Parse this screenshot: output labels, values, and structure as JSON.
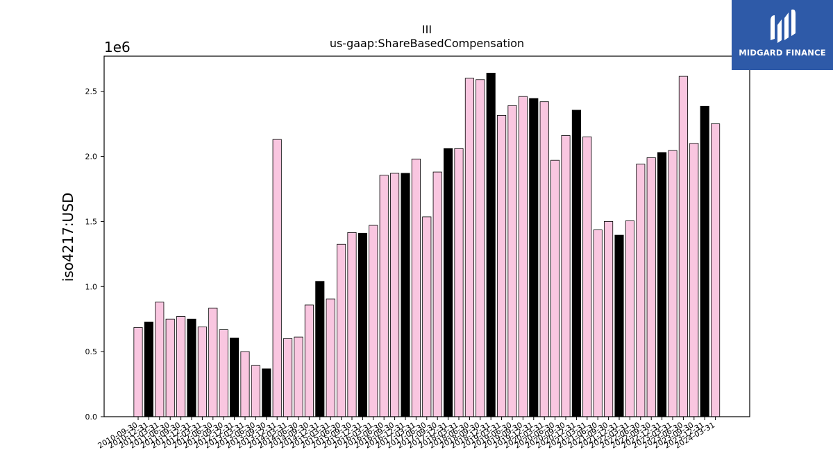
{
  "brand": {
    "name": "MIDGARD FINANCE",
    "bg_color": "#2e5aa8"
  },
  "chart_data": {
    "type": "bar",
    "title": "III",
    "subtitle": "us-gaap:ShareBasedCompensation",
    "ylabel": "iso4217:USD",
    "xlabel": "",
    "y_offset_label": "1e6",
    "ylim": [
      0,
      2770000
    ],
    "yticks": [
      0.0,
      0.5,
      1.0,
      1.5,
      2.0,
      2.5
    ],
    "yticks_display": [
      "0.0",
      "0.5",
      "1.0",
      "1.5",
      "2.0",
      "2.5"
    ],
    "colors": {
      "quarter": "#f9c6e0",
      "fiscal_year_end": "#000000",
      "edge": "#000000"
    },
    "grid": false,
    "categories": [
      "2010-09-30",
      "2010-12-31",
      "2011-03-31",
      "2011-06-30",
      "2011-09-30",
      "2011-12-31",
      "2012-03-31",
      "2012-06-30",
      "2012-09-30",
      "2012-12-31",
      "2013-03-31",
      "2013-06-30",
      "2013-09-30",
      "2013-12-31",
      "2014-03-31",
      "2014-06-30",
      "2014-09-30",
      "2014-12-31",
      "2015-03-31",
      "2015-06-30",
      "2015-09-30",
      "2015-12-31",
      "2016-03-31",
      "2016-06-30",
      "2016-09-30",
      "2016-12-31",
      "2017-03-31",
      "2017-06-30",
      "2017-09-30",
      "2017-12-31",
      "2018-03-31",
      "2018-06-30",
      "2018-09-30",
      "2018-12-31",
      "2019-03-31",
      "2019-06-30",
      "2019-09-30",
      "2019-12-31",
      "2020-03-31",
      "2020-06-30",
      "2020-09-30",
      "2020-12-31",
      "2021-03-31",
      "2021-06-30",
      "2021-09-30",
      "2021-12-31",
      "2022-03-31",
      "2022-06-30",
      "2022-09-30",
      "2022-12-31",
      "2023-03-31",
      "2023-06-30",
      "2023-09-30",
      "2023-12-31",
      "2024-03-31"
    ],
    "values": [
      685000,
      728000,
      880000,
      750000,
      770000,
      750000,
      690000,
      835000,
      668000,
      605000,
      500000,
      393000,
      368000,
      2130000,
      600000,
      612000,
      858000,
      1040000,
      905000,
      1325000,
      1415000,
      1410000,
      1470000,
      1855000,
      1870000,
      1870000,
      1980000,
      1535000,
      1880000,
      2060000,
      2060000,
      2600000,
      2590000,
      2640000,
      2315000,
      2390000,
      2460000,
      2445000,
      2420000,
      1970000,
      2160000,
      2355000,
      2150000,
      1435000,
      1500000,
      1395000,
      1505000,
      1940000,
      1990000,
      2030000,
      2045000,
      2615000,
      2100000,
      2385000,
      2250000
    ],
    "highlight": [
      false,
      true,
      false,
      false,
      false,
      true,
      false,
      false,
      false,
      true,
      false,
      false,
      true,
      false,
      false,
      false,
      false,
      true,
      false,
      false,
      false,
      true,
      false,
      false,
      false,
      true,
      false,
      false,
      false,
      true,
      false,
      false,
      false,
      true,
      false,
      false,
      false,
      true,
      false,
      false,
      false,
      true,
      false,
      false,
      false,
      true,
      false,
      false,
      false,
      true,
      false,
      false,
      false,
      true,
      false
    ]
  }
}
